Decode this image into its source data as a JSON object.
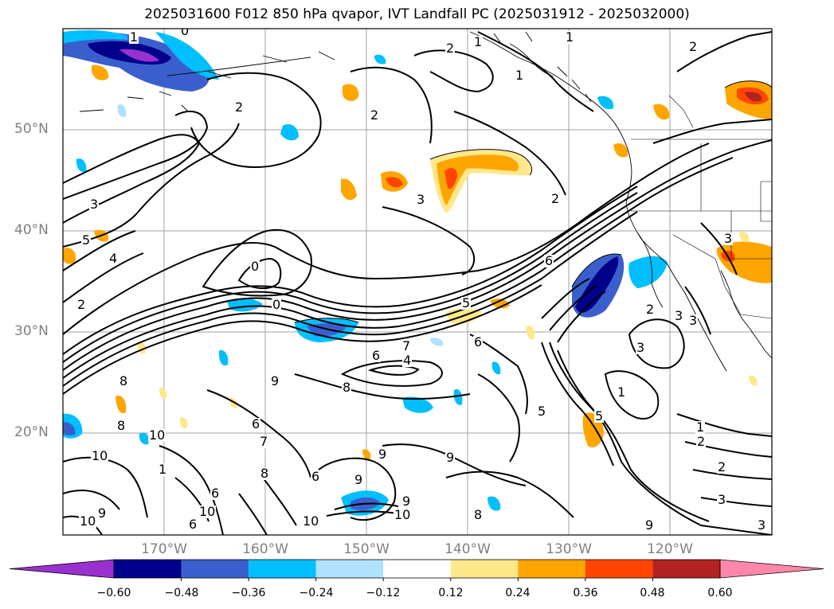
{
  "title": "2025031600 F012 850 hPa qvapor, IVT Landfall PC (2025031912 - 2025032000)",
  "lat_labels": [
    "50°N",
    "40°N",
    "30°N",
    "20°N"
  ],
  "lon_labels": [
    "170°W",
    "160°W",
    "150°W",
    "140°W",
    "130°W",
    "120°W"
  ],
  "colorbar": {
    "colors": [
      "#9b30d0",
      "#00008b",
      "#3a5fcd",
      "#00bfff",
      "#b0e2ff",
      "#ffffff",
      "#ffe88a",
      "#ffa500",
      "#ff4500",
      "#b22222",
      "#ff88aa"
    ],
    "tick_labels": [
      "−0.60",
      "−0.48",
      "−0.36",
      "−0.24",
      "−0.12",
      "0.12",
      "0.24",
      "0.36",
      "0.48",
      "0.60"
    ]
  },
  "contour_labels": [
    "1",
    "0",
    "2",
    "1",
    "1",
    "2",
    "1",
    "2",
    "2",
    "3",
    "5",
    "4",
    "2",
    "0",
    "0",
    "3",
    "2",
    "5",
    "6",
    "7",
    "4",
    "6",
    "9",
    "8",
    "6",
    "10",
    "8",
    "6",
    "7",
    "8",
    "9",
    "9",
    "9",
    "6",
    "9",
    "10",
    "10",
    "10",
    "10",
    "6",
    "6",
    "8",
    "1",
    "3",
    "3",
    "3",
    "3",
    "2",
    "1",
    "5",
    "2",
    "1",
    "2",
    "3",
    "3",
    "9",
    "8",
    "5",
    "3",
    "10",
    "9"
  ]
}
